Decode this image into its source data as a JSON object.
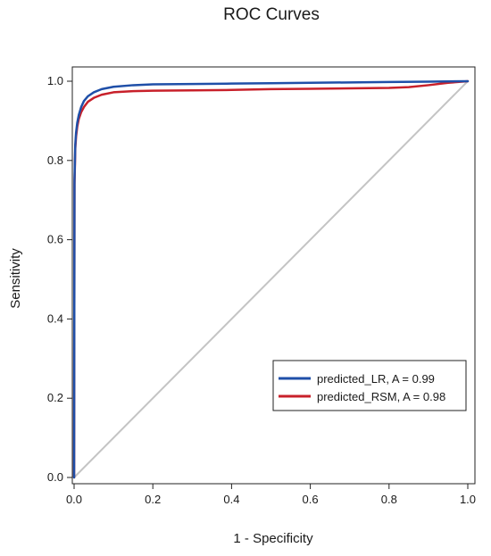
{
  "chart_data": {
    "type": "line",
    "title": "ROC Curves",
    "xlabel": "1 - Specificity",
    "ylabel": "Sensitivity",
    "xlim": [
      0,
      1
    ],
    "ylim": [
      0,
      1
    ],
    "xticks": [
      "0.0",
      "0.2",
      "0.4",
      "0.6",
      "0.8",
      "1.0"
    ],
    "yticks": [
      "0.0",
      "0.2",
      "0.4",
      "0.6",
      "0.8",
      "1.0"
    ],
    "grid": false,
    "legend_position": "bottom-right",
    "series": [
      {
        "name": "predicted_LR, A = 0.99",
        "color": "#1f4fa8",
        "x": [
          0,
          0.001,
          0.003,
          0.005,
          0.008,
          0.012,
          0.018,
          0.025,
          0.035,
          0.05,
          0.07,
          0.1,
          0.15,
          0.2,
          0.3,
          0.4,
          0.5,
          0.6,
          0.7,
          0.8,
          0.9,
          1.0
        ],
        "y": [
          0,
          0.75,
          0.84,
          0.87,
          0.895,
          0.915,
          0.935,
          0.95,
          0.962,
          0.972,
          0.98,
          0.986,
          0.99,
          0.992,
          0.993,
          0.994,
          0.995,
          0.996,
          0.997,
          0.998,
          0.999,
          1.0
        ]
      },
      {
        "name": "predicted_RSM, A = 0.98",
        "color": "#c8202a",
        "x": [
          0,
          0.001,
          0.003,
          0.005,
          0.008,
          0.012,
          0.018,
          0.025,
          0.035,
          0.05,
          0.07,
          0.1,
          0.15,
          0.2,
          0.3,
          0.4,
          0.5,
          0.6,
          0.7,
          0.8,
          0.85,
          0.9,
          0.95,
          1.0
        ],
        "y": [
          0,
          0.74,
          0.83,
          0.86,
          0.885,
          0.905,
          0.922,
          0.935,
          0.948,
          0.958,
          0.966,
          0.972,
          0.975,
          0.976,
          0.977,
          0.978,
          0.98,
          0.981,
          0.982,
          0.983,
          0.985,
          0.99,
          0.996,
          1.0
        ]
      },
      {
        "name": "",
        "color": "#c4c4c4",
        "x": [
          0,
          1
        ],
        "y": [
          0,
          1
        ]
      }
    ]
  }
}
